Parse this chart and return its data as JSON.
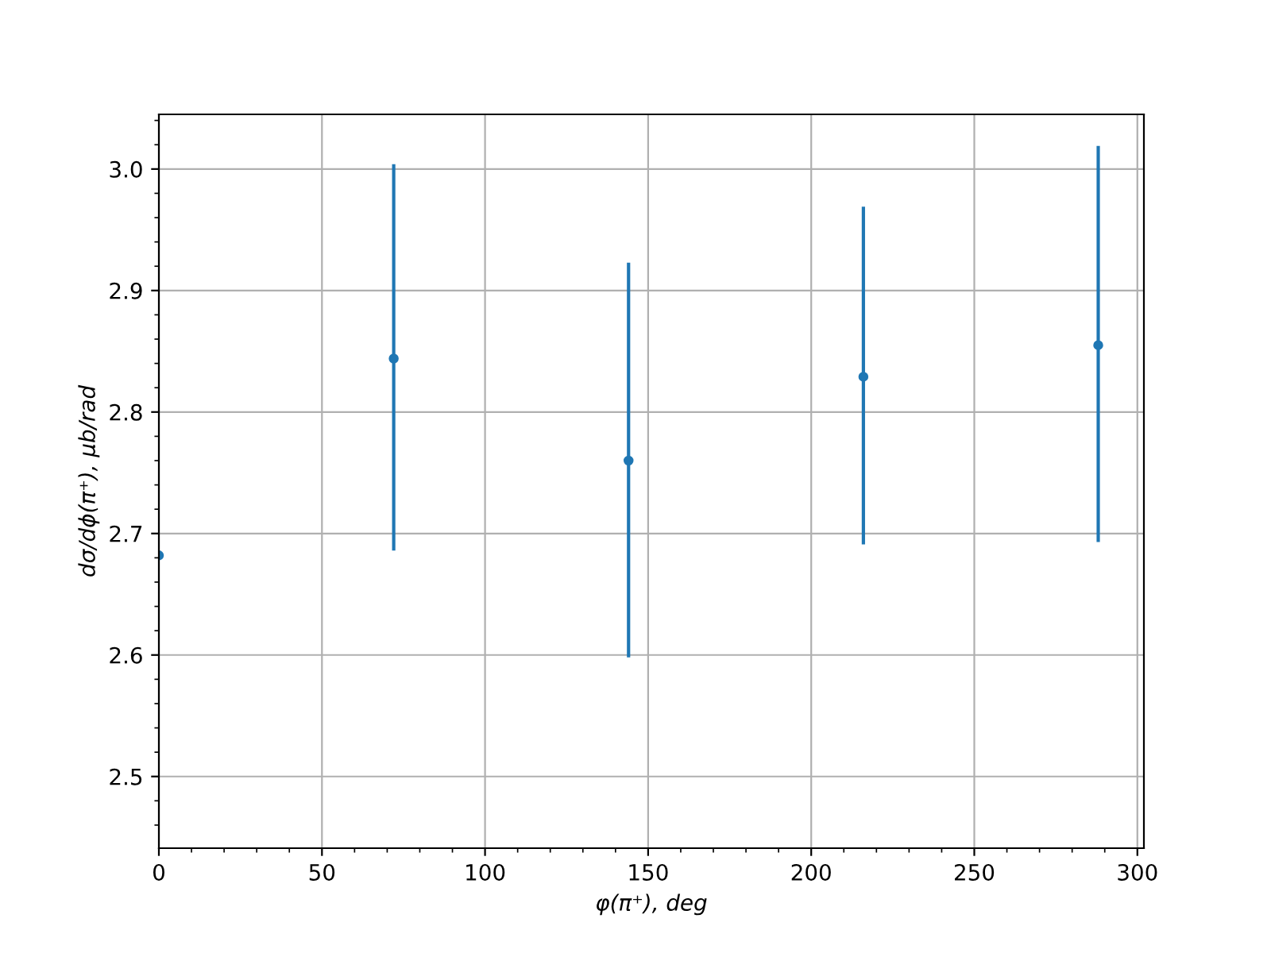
{
  "chart_data": {
    "type": "scatter",
    "xlabel": "φ(π⁺), deg",
    "ylabel": "dσ/dϕ(π⁺), μb/rad",
    "x": [
      0,
      72,
      144,
      216,
      288
    ],
    "series": [
      {
        "color": "#1f77b4",
        "values": [
          2.682,
          2.844,
          2.76,
          2.829,
          2.855
        ],
        "errors": [
          null,
          [
            2.686,
            3.004
          ],
          [
            2.598,
            2.923
          ],
          [
            2.691,
            2.969
          ],
          [
            2.693,
            3.019
          ]
        ]
      }
    ],
    "xlim": [
      0,
      302
    ],
    "ylim": [
      2.441,
      3.045
    ],
    "xticks": [
      0,
      50,
      100,
      150,
      200,
      250,
      300
    ],
    "yticks": [
      2.5,
      2.6,
      2.7,
      2.8,
      2.9,
      {
        "value": 3.0,
        "label": "3.0"
      }
    ],
    "grid": true,
    "marker": "circle"
  }
}
